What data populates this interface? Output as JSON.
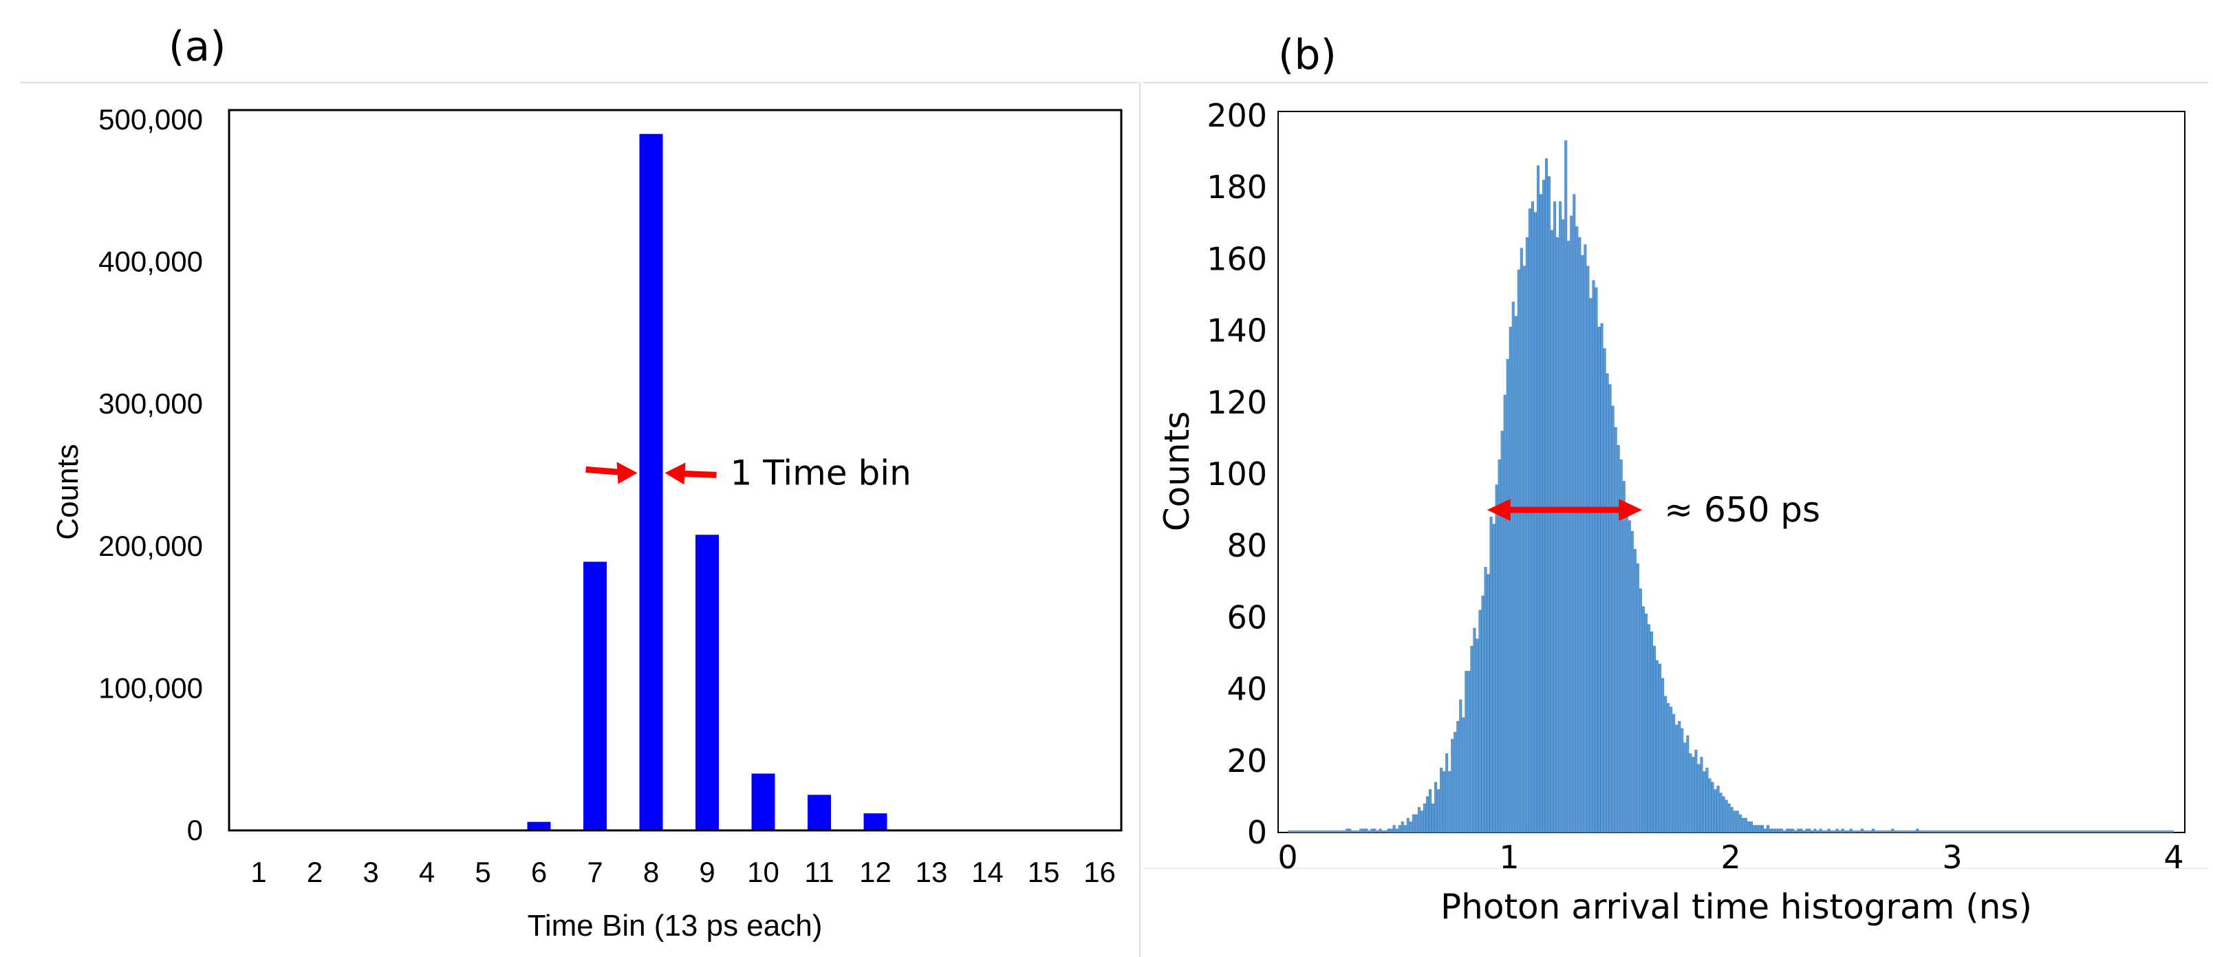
{
  "colors": {
    "bar_a": "#0000ff",
    "bar_b": "#5b9bd5",
    "arrow": "#ff0000",
    "frame": "#000000",
    "divider": "#d9d9d9"
  },
  "chart_data": [
    {
      "panel_label": "(a)",
      "type": "bar",
      "title": "",
      "xlabel": "Time Bin (13 ps each)",
      "ylabel": "Counts",
      "ylim": [
        0,
        500000
      ],
      "grid": false,
      "yticks": [
        0,
        100000,
        200000,
        300000,
        400000,
        500000
      ],
      "ytick_labels": [
        "0",
        "100,000",
        "200,000",
        "300,000",
        "400,000",
        "500,000"
      ],
      "categories": [
        "1",
        "2",
        "3",
        "4",
        "5",
        "6",
        "7",
        "8",
        "9",
        "10",
        "11",
        "12",
        "13",
        "14",
        "15",
        "16"
      ],
      "values": [
        0,
        0,
        0,
        0,
        0,
        6000,
        189000,
        490000,
        208000,
        40000,
        25000,
        12000,
        0,
        0,
        0,
        0
      ],
      "annotation": {
        "text": "1 Time bin",
        "target_category": "8",
        "y_value": 252000
      }
    },
    {
      "panel_label": "(b)",
      "type": "bar",
      "title": "",
      "xlabel": "Photon arrival time histogram (ns)",
      "ylabel": "Counts",
      "xlim": [
        0,
        4
      ],
      "ylim": [
        0,
        200
      ],
      "grid": false,
      "xticks": [
        0,
        1,
        2,
        3,
        4
      ],
      "xtick_labels": [
        "0",
        "1",
        "2",
        "3",
        "4"
      ],
      "yticks": [
        0,
        20,
        40,
        60,
        80,
        100,
        120,
        140,
        160,
        180,
        200
      ],
      "ytick_labels": [
        "0",
        "20",
        "40",
        "60",
        "80",
        "100",
        "120",
        "140",
        "160",
        "180",
        "200"
      ],
      "bin_width_ns": 0.0125,
      "bins_start_ns": 0,
      "values": [
        0,
        0,
        0,
        0,
        0,
        0,
        0,
        0,
        0,
        0,
        0,
        0,
        0,
        0,
        0,
        0,
        0,
        0,
        0,
        0,
        0,
        1,
        1,
        0,
        0,
        0,
        1,
        1,
        1,
        0,
        1,
        1,
        0,
        1,
        0,
        0,
        1,
        1,
        2,
        1,
        2,
        3,
        2,
        4,
        3,
        5,
        5,
        7,
        6,
        8,
        10,
        12,
        8,
        14,
        12,
        18,
        17,
        22,
        17,
        26,
        28,
        31,
        37,
        32,
        45,
        45,
        52,
        57,
        54,
        62,
        66,
        74,
        72,
        88,
        86,
        97,
        104,
        112,
        122,
        132,
        141,
        148,
        144,
        157,
        163,
        158,
        166,
        174,
        176,
        173,
        186,
        178,
        182,
        188,
        183,
        168,
        176,
        166,
        176,
        171,
        193,
        165,
        172,
        178,
        169,
        166,
        161,
        164,
        158,
        149,
        154,
        152,
        141,
        142,
        135,
        128,
        125,
        119,
        113,
        108,
        104,
        98,
        91,
        87,
        84,
        79,
        75,
        68,
        63,
        61,
        58,
        56,
        52,
        48,
        47,
        43,
        38,
        36,
        35,
        33,
        30,
        31,
        29,
        25,
        27,
        22,
        21,
        23,
        19,
        21,
        17,
        18,
        15,
        14,
        12,
        13,
        11,
        10,
        9,
        8,
        7,
        6,
        6,
        5,
        4,
        4,
        3,
        3,
        2,
        2,
        2,
        2,
        1,
        2,
        1,
        1,
        1,
        1,
        1,
        0,
        1,
        1,
        1,
        0,
        1,
        1,
        0,
        1,
        1,
        0,
        1,
        0,
        1,
        0,
        0,
        1,
        0,
        0,
        1,
        0,
        1,
        0,
        0,
        1,
        0,
        0,
        0,
        1,
        0,
        0,
        0,
        1,
        0,
        0,
        0,
        0,
        0,
        0,
        1,
        0,
        0,
        0,
        0,
        0,
        0,
        0,
        0,
        1,
        0,
        0,
        0,
        0,
        0,
        0,
        0,
        0,
        0,
        0,
        0,
        0,
        0,
        0,
        0,
        0,
        0,
        0,
        0,
        0,
        0,
        0,
        0,
        0,
        0,
        0,
        0,
        0,
        0,
        0,
        0,
        0,
        0,
        0,
        0,
        0,
        0,
        0,
        0,
        0,
        0,
        0,
        0,
        0,
        0,
        0,
        0,
        0,
        0,
        0,
        0,
        0,
        0,
        0,
        0,
        0,
        0,
        0,
        0,
        0,
        0,
        0,
        0,
        0,
        0,
        0,
        0,
        0,
        0,
        0,
        0,
        0,
        0,
        0,
        0,
        0,
        0,
        0,
        0,
        0,
        0,
        0,
        0,
        0,
        0,
        0,
        0,
        0,
        0,
        0,
        0,
        0,
        0,
        0
      ],
      "annotation": {
        "text": "≈ 650 ps",
        "x_start_ns": 0.9,
        "x_end_ns": 1.6,
        "y_value": 90
      }
    }
  ]
}
